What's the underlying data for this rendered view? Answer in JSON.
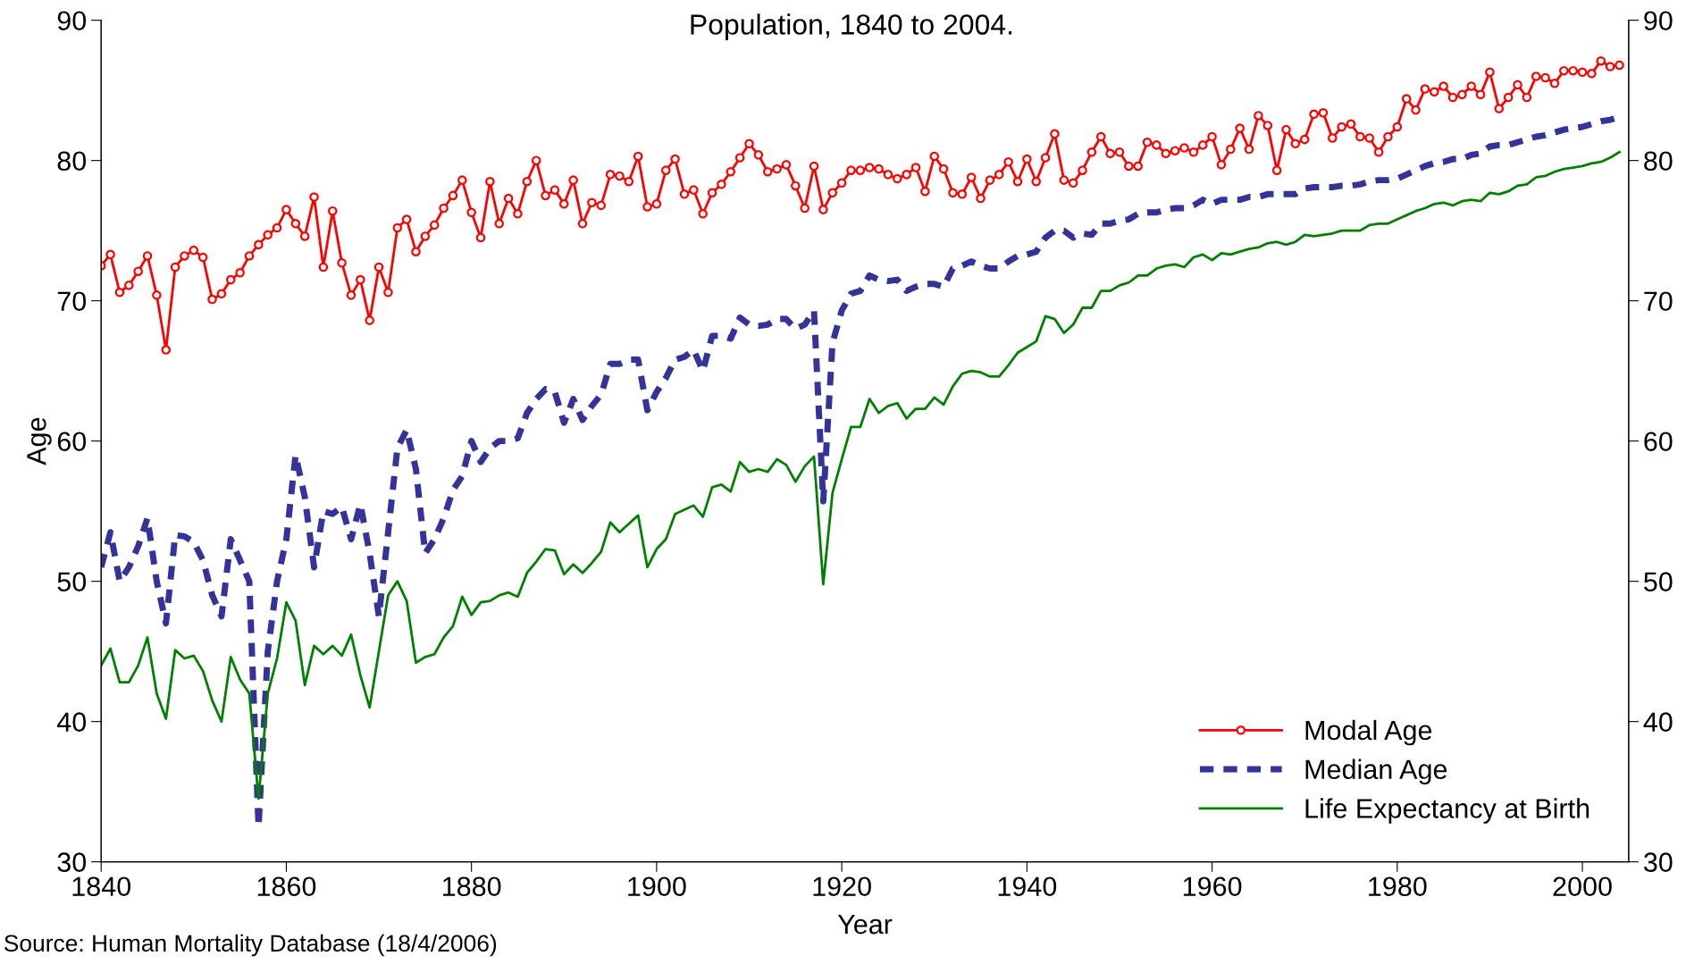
{
  "chart_data": {
    "type": "line",
    "title": "Population, 1840 to 2004.",
    "xlabel": "Year",
    "ylabel": "Age",
    "annotations": [
      "Source: Human Mortality Database (18/4/2006)"
    ],
    "x": [
      1840,
      1841,
      1842,
      1843,
      1844,
      1845,
      1846,
      1847,
      1848,
      1849,
      1850,
      1851,
      1852,
      1853,
      1854,
      1855,
      1856,
      1857,
      1858,
      1859,
      1860,
      1861,
      1862,
      1863,
      1864,
      1865,
      1866,
      1867,
      1868,
      1869,
      1870,
      1871,
      1872,
      1873,
      1874,
      1875,
      1876,
      1877,
      1878,
      1879,
      1880,
      1881,
      1882,
      1883,
      1884,
      1885,
      1886,
      1887,
      1888,
      1889,
      1890,
      1891,
      1892,
      1893,
      1894,
      1895,
      1896,
      1897,
      1898,
      1899,
      1900,
      1901,
      1902,
      1903,
      1904,
      1905,
      1906,
      1907,
      1908,
      1909,
      1910,
      1911,
      1912,
      1913,
      1914,
      1915,
      1916,
      1917,
      1918,
      1919,
      1920,
      1921,
      1922,
      1923,
      1924,
      1925,
      1926,
      1927,
      1928,
      1929,
      1930,
      1931,
      1932,
      1933,
      1934,
      1935,
      1936,
      1937,
      1938,
      1939,
      1940,
      1941,
      1942,
      1943,
      1944,
      1945,
      1946,
      1947,
      1948,
      1949,
      1950,
      1951,
      1952,
      1953,
      1954,
      1955,
      1956,
      1957,
      1958,
      1959,
      1960,
      1961,
      1962,
      1963,
      1964,
      1965,
      1966,
      1967,
      1968,
      1969,
      1970,
      1971,
      1972,
      1973,
      1974,
      1975,
      1976,
      1977,
      1978,
      1979,
      1980,
      1981,
      1982,
      1983,
      1984,
      1985,
      1986,
      1987,
      1988,
      1989,
      1990,
      1991,
      1992,
      1993,
      1994,
      1995,
      1996,
      1997,
      1998,
      1999,
      2000,
      2001,
      2002,
      2003,
      2004
    ],
    "series": [
      {
        "name": "Modal Age",
        "color": "#ff0000",
        "marker": "circle",
        "line_style": "solid",
        "values": [
          72.5,
          73.3,
          70.6,
          71.1,
          72.1,
          73.2,
          70.4,
          66.5,
          72.4,
          73.2,
          73.6,
          73.1,
          70.1,
          70.5,
          71.5,
          72.0,
          73.2,
          74.0,
          74.7,
          75.2,
          76.5,
          75.5,
          74.6,
          77.4,
          72.4,
          76.4,
          72.7,
          70.4,
          71.5,
          68.6,
          72.4,
          70.6,
          75.2,
          75.8,
          73.5,
          74.6,
          75.4,
          76.6,
          77.5,
          78.6,
          76.3,
          74.5,
          78.5,
          75.5,
          77.3,
          76.2,
          78.5,
          80.0,
          77.5,
          77.9,
          76.9,
          78.6,
          75.5,
          77.0,
          76.8,
          79.0,
          78.9,
          78.5,
          80.3,
          76.7,
          76.9,
          79.3,
          80.1,
          77.6,
          77.9,
          76.2,
          77.7,
          78.3,
          79.2,
          80.2,
          81.2,
          80.4,
          79.2,
          79.4,
          79.7,
          78.2,
          76.6,
          79.6,
          76.5,
          77.7,
          78.4,
          79.3,
          79.3,
          79.5,
          79.4,
          79.0,
          78.7,
          79.0,
          79.5,
          77.8,
          80.3,
          79.4,
          77.7,
          77.6,
          78.8,
          77.3,
          78.6,
          79.0,
          79.9,
          78.5,
          80.1,
          78.5,
          80.2,
          81.9,
          78.6,
          78.4,
          79.3,
          80.6,
          81.7,
          80.5,
          80.6,
          79.6,
          79.6,
          81.3,
          81.1,
          80.5,
          80.7,
          80.9,
          80.6,
          81.1,
          81.7,
          79.7,
          80.8,
          82.3,
          80.8,
          83.2,
          82.5,
          79.3,
          82.2,
          81.2,
          81.5,
          83.3,
          83.4,
          81.6,
          82.4,
          82.6,
          81.7,
          81.6,
          80.6,
          81.7,
          82.4,
          84.4,
          83.6,
          85.1,
          84.9,
          85.3,
          84.5,
          84.7,
          85.3,
          84.7,
          86.3,
          83.7,
          84.5,
          85.4,
          84.5,
          86.0,
          85.9,
          85.5,
          86.4,
          86.4,
          86.3,
          86.2,
          87.1,
          86.7,
          86.8
        ]
      },
      {
        "name": "Median Age",
        "color": "#333399",
        "marker": "none",
        "line_style": "dashed",
        "values": [
          51,
          53.5,
          50,
          51,
          52.5,
          54.5,
          50,
          47,
          53.3,
          53.2,
          52.8,
          51.5,
          49,
          47.5,
          53,
          51.5,
          50,
          32.5,
          45,
          50,
          53,
          59,
          56,
          51,
          55,
          54.8,
          55.3,
          53,
          55.5,
          52,
          47.5,
          53.5,
          59.5,
          60.8,
          58,
          52,
          53,
          54.5,
          56.5,
          57.5,
          60,
          58.5,
          59.5,
          60,
          60,
          60.2,
          62,
          63,
          63.7,
          63.5,
          61.3,
          63,
          61.5,
          62.5,
          63.3,
          65.5,
          65.5,
          65.8,
          65.8,
          62.2,
          63.5,
          64.5,
          65.8,
          66,
          66.5,
          65,
          67.5,
          67.5,
          67.3,
          68.8,
          68.3,
          68.2,
          68.3,
          68.7,
          68.7,
          68,
          68.3,
          69.3,
          55.7,
          67,
          69.3,
          70.5,
          70.7,
          71.8,
          71.5,
          71.4,
          71.5,
          70.7,
          71,
          71.2,
          71.2,
          71,
          72.3,
          72.5,
          72.8,
          72.5,
          72.3,
          72.3,
          72.8,
          73.2,
          73.3,
          73.5,
          74.5,
          75,
          75,
          74.5,
          74.8,
          74.7,
          75.5,
          75.5,
          75.7,
          75.8,
          76.2,
          76.3,
          76.3,
          76.5,
          76.6,
          76.6,
          76.8,
          77.2,
          76.9,
          77.2,
          77.2,
          77.2,
          77.4,
          77.4,
          77.6,
          77.6,
          77.6,
          77.6,
          78.0,
          78.1,
          78.1,
          78.1,
          78.2,
          78.2,
          78.3,
          78.5,
          78.6,
          78.6,
          78.7,
          79.0,
          79.3,
          79.6,
          79.8,
          79.9,
          80.1,
          80.1,
          80.4,
          80.5,
          81.0,
          81.1,
          81.1,
          81.3,
          81.5,
          81.7,
          81.8,
          82.0,
          82.2,
          82.3,
          82.4,
          82.6,
          82.8,
          82.9,
          83.1
        ]
      },
      {
        "name": "Life Expectancy at Birth",
        "color": "#008000",
        "marker": "none",
        "line_style": "solid",
        "values": [
          44,
          45.2,
          42.8,
          42.8,
          44,
          46,
          42,
          40.2,
          45.1,
          44.5,
          44.7,
          43.6,
          41.5,
          40,
          44.6,
          43,
          42,
          34.5,
          42,
          44.5,
          48.5,
          47.2,
          42.6,
          45.4,
          44.8,
          45.4,
          44.7,
          46.2,
          43.3,
          41,
          45,
          49,
          50,
          48.6,
          44.2,
          44.6,
          44.8,
          46,
          46.8,
          48.9,
          47.6,
          48.5,
          48.6,
          49.0,
          49.2,
          48.9,
          50.6,
          51.4,
          52.3,
          52.2,
          50.5,
          51.2,
          50.6,
          51.3,
          52.1,
          54.2,
          53.5,
          54.1,
          54.7,
          51.0,
          52.3,
          53.0,
          54.8,
          55.1,
          55.4,
          54.6,
          56.7,
          56.9,
          56.4,
          58.5,
          57.8,
          58.0,
          57.8,
          58.7,
          58.3,
          57.1,
          58.2,
          58.9,
          49.8,
          56.3,
          58.7,
          61.0,
          61.0,
          63.0,
          62.0,
          62.5,
          62.7,
          61.6,
          62.3,
          62.3,
          63.1,
          62.6,
          63.9,
          64.8,
          65.0,
          64.9,
          64.6,
          64.6,
          65.4,
          66.3,
          66.7,
          67.1,
          68.9,
          68.7,
          67.7,
          68.3,
          69.5,
          69.5,
          70.7,
          70.7,
          71.1,
          71.3,
          71.8,
          71.8,
          72.3,
          72.5,
          72.6,
          72.4,
          73.1,
          73.3,
          72.9,
          73.4,
          73.3,
          73.5,
          73.7,
          73.8,
          74.1,
          74.2,
          74.0,
          74.2,
          74.7,
          74.6,
          74.7,
          74.8,
          75.0,
          75.0,
          75.0,
          75.4,
          75.5,
          75.5,
          75.8,
          76.1,
          76.4,
          76.6,
          76.9,
          77.0,
          76.8,
          77.1,
          77.2,
          77.1,
          77.7,
          77.6,
          77.8,
          78.2,
          78.3,
          78.8,
          78.9,
          79.2,
          79.4,
          79.5,
          79.6,
          79.8,
          79.9,
          80.2,
          80.6
        ]
      }
    ],
    "xlim": [
      1840,
      2005
    ],
    "xticks": [
      1840,
      1860,
      1880,
      1900,
      1920,
      1940,
      1960,
      1980,
      2000
    ],
    "ylim": [
      30,
      90
    ],
    "yticks": [
      30,
      40,
      50,
      60,
      70,
      80,
      90
    ],
    "y2lim": [
      30,
      90
    ],
    "y2ticks": [
      30,
      40,
      50,
      60,
      70,
      80,
      90
    ],
    "legend": "bottom right"
  }
}
